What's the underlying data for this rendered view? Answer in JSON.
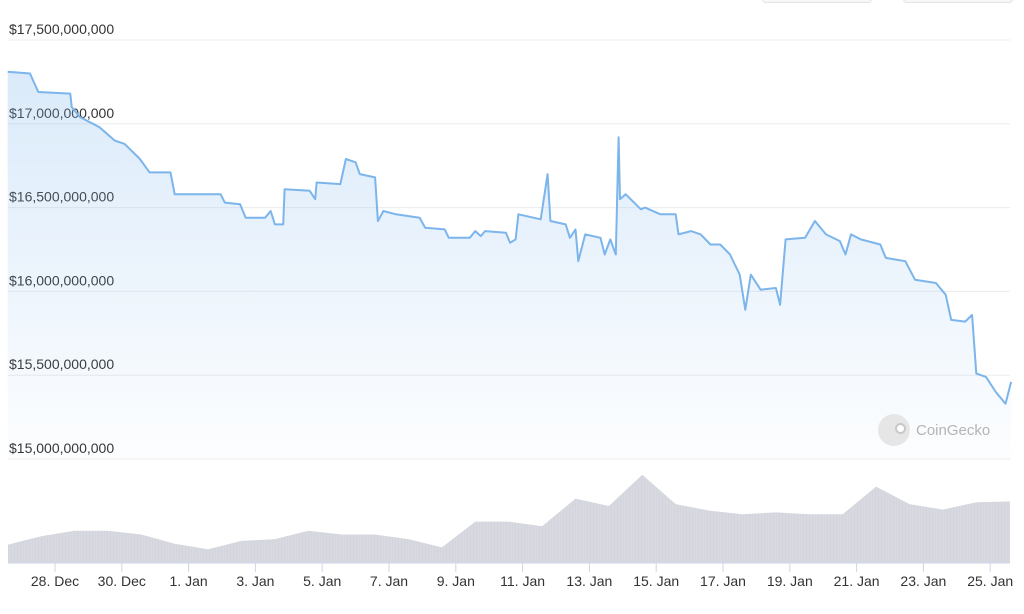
{
  "top_buttons": [
    "",
    ""
  ],
  "watermark": "CoinGecko",
  "colors": {
    "line": "#7cb5ec",
    "volume": "#d3d5dc",
    "grid": "#ececec",
    "axis": "#ccd6eb"
  },
  "chart_data": {
    "type": "line",
    "title": "",
    "xlabel": "",
    "ylabel": "",
    "ylim": [
      15000000000,
      17500000000
    ],
    "y_ticks": [
      "$15,000,000,000",
      "$15,500,000,000",
      "$16,000,000,000",
      "$16,500,000,000",
      "$17,000,000,000",
      "$17,500,000,000"
    ],
    "y_tick_values": [
      15000000000,
      15500000000,
      16000000000,
      16500000000,
      17000000000,
      17500000000
    ],
    "x_ticks": [
      "28. Dec",
      "30. Dec",
      "1. Jan",
      "3. Jan",
      "5. Jan",
      "7. Jan",
      "9. Jan",
      "11. Jan",
      "13. Jan",
      "15. Jan",
      "17. Jan",
      "19. Jan",
      "21. Jan",
      "23. Jan",
      "25. Jan"
    ],
    "x_tick_dates": [
      "Dec 28 00:00",
      "Dec 30 00:00",
      "Jan 1 00:00",
      "Jan 3 00:00",
      "Jan 5 00:00",
      "Jan 7 00:00",
      "Jan 9 00:00",
      "Jan 11 00:00",
      "Jan 13 00:00",
      "Jan 15 00:00",
      "Jan 17 00:00",
      "Jan 19 00:00",
      "Jan 21 00:00",
      "Jan 23 00:00",
      "Jan 25 00:00"
    ],
    "grid": true,
    "fill_under_line": true,
    "series": [
      {
        "x": [
          "Dec 26 14:00",
          "Dec 27 06:00",
          "Dec 27 12:00",
          "Dec 28 11:00",
          "Dec 28 12:00",
          "Dec 28 18:00",
          "Dec 29 08:00",
          "Dec 29 19:00",
          "Dec 30 02:00",
          "Dec 30 13:00",
          "Dec 30 20:00",
          "Dec 31 11:00",
          "Dec 31 14:00",
          "Jan 1 23:00",
          "Jan 2 02:00",
          "Jan 2 13:00",
          "Jan 2 17:00",
          "Jan 3 07:00",
          "Jan 3 11:00",
          "Jan 3 14:00",
          "Jan 3 20:00",
          "Jan 3 21:00",
          "Jan 4 15:00",
          "Jan 4 19:00",
          "Jan 4 20:00",
          "Jan 5 13:00",
          "Jan 5 17:00",
          "Jan 6 00:00",
          "Jan 6 03:00",
          "Jan 6 14:00",
          "Jan 6 16:00",
          "Jan 6 20:00",
          "Jan 7 05:00",
          "Jan 7 22:00",
          "Jan 8 02:00",
          "Jan 8 16:00",
          "Jan 8 19:00",
          "Jan 9 10:00",
          "Jan 9 14:00",
          "Jan 9 18:00",
          "Jan 9 21:00",
          "Jan 10 12:00",
          "Jan 10 15:00",
          "Jan 10 19:00",
          "Jan 10 21:00",
          "Jan 11 13:00",
          "Jan 11 18:00",
          "Jan 11 20:00",
          "Jan 12 07:00",
          "Jan 12 10:00",
          "Jan 12 14:00",
          "Jan 12 16:00",
          "Jan 12 21:00",
          "Jan 13 08:00",
          "Jan 13 11:00",
          "Jan 13 15:00",
          "Jan 13 19:00",
          "Jan 13 21:00",
          "Jan 13 22:00",
          "Jan 14 02:00",
          "Jan 14 13:00",
          "Jan 14 16:00",
          "Jan 15 03:00",
          "Jan 15 14:00",
          "Jan 15 16:00",
          "Jan 16 01:00",
          "Jan 16 08:00",
          "Jan 16 15:00",
          "Jan 16 22:00",
          "Jan 17 05:00",
          "Jan 17 12:00",
          "Jan 17 16:00",
          "Jan 17 20:00",
          "Jan 18 03:00",
          "Jan 18 14:00",
          "Jan 18 17:00",
          "Jan 18 21:00",
          "Jan 19 11:00",
          "Jan 19 18:00",
          "Jan 20 02:00",
          "Jan 20 12:00",
          "Jan 20 16:00",
          "Jan 20 20:00",
          "Jan 21 03:00",
          "Jan 21 17:00",
          "Jan 21 21:00",
          "Jan 22 11:00",
          "Jan 22 18:00",
          "Jan 23 09:00",
          "Jan 23 16:00",
          "Jan 23 20:00",
          "Jan 24 06:00",
          "Jan 24 11:00",
          "Jan 24 14:00",
          "Jan 24 21:00",
          "Jan 25 04:00",
          "Jan 25 11:00",
          "Jan 25 15:00"
        ],
        "values": [
          17310000000,
          17300000000,
          17190000000,
          17180000000,
          17100000000,
          17040000000,
          16980000000,
          16900000000,
          16880000000,
          16790000000,
          16710000000,
          16710000000,
          16580000000,
          16580000000,
          16530000000,
          16520000000,
          16440000000,
          16440000000,
          16480000000,
          16400000000,
          16400000000,
          16610000000,
          16600000000,
          16550000000,
          16650000000,
          16640000000,
          16790000000,
          16770000000,
          16700000000,
          16680000000,
          16420000000,
          16480000000,
          16460000000,
          16440000000,
          16380000000,
          16370000000,
          16320000000,
          16320000000,
          16360000000,
          16330000000,
          16360000000,
          16350000000,
          16290000000,
          16310000000,
          16460000000,
          16430000000,
          16700000000,
          16420000000,
          16400000000,
          16320000000,
          16370000000,
          16180000000,
          16340000000,
          16320000000,
          16220000000,
          16310000000,
          16220000000,
          16920000000,
          16550000000,
          16580000000,
          16490000000,
          16500000000,
          16460000000,
          16460000000,
          16340000000,
          16360000000,
          16340000000,
          16280000000,
          16280000000,
          16220000000,
          16100000000,
          15890000000,
          16100000000,
          16010000000,
          16020000000,
          15920000000,
          16310000000,
          16320000000,
          16420000000,
          16340000000,
          16300000000,
          16220000000,
          16340000000,
          16310000000,
          16280000000,
          16200000000,
          16180000000,
          16070000000,
          16050000000,
          15980000000,
          15830000000,
          15820000000,
          15860000000,
          15510000000,
          15490000000,
          15400000000,
          15330000000,
          15460000000
        ]
      }
    ],
    "volume": {
      "type": "area",
      "x": [
        "Dec 26 14:00",
        "Dec 27 14:00",
        "Dec 28 14:00",
        "Dec 29 14:00",
        "Dec 30 14:00",
        "Dec 31 14:00",
        "Jan 1 14:00",
        "Jan 2 14:00",
        "Jan 3 14:00",
        "Jan 4 14:00",
        "Jan 5 14:00",
        "Jan 6 14:00",
        "Jan 7 14:00",
        "Jan 8 14:00",
        "Jan 9 14:00",
        "Jan 10 14:00",
        "Jan 11 14:00",
        "Jan 12 14:00",
        "Jan 13 14:00",
        "Jan 14 14:00",
        "Jan 15 14:00",
        "Jan 16 14:00",
        "Jan 17 14:00",
        "Jan 18 14:00",
        "Jan 19 14:00",
        "Jan 20 14:00",
        "Jan 21 14:00",
        "Jan 22 14:00",
        "Jan 23 14:00",
        "Jan 24 14:00",
        "Jan 25 14:00"
      ],
      "relative_values": [
        0.2,
        0.29,
        0.35,
        0.35,
        0.31,
        0.21,
        0.15,
        0.24,
        0.26,
        0.35,
        0.31,
        0.31,
        0.26,
        0.17,
        0.45,
        0.45,
        0.4,
        0.7,
        0.62,
        0.96,
        0.64,
        0.57,
        0.53,
        0.55,
        0.53,
        0.53,
        0.83,
        0.64,
        0.58,
        0.66,
        0.67
      ]
    }
  }
}
